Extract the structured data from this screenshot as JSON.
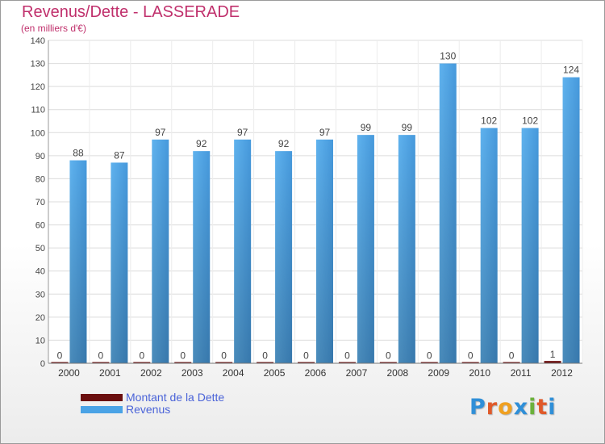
{
  "chart_data": {
    "type": "bar",
    "title": "Revenus/Dette - LASSERADE",
    "subtitle": "(en milliers d'€)",
    "categories": [
      "2000",
      "2001",
      "2002",
      "2003",
      "2004",
      "2005",
      "2006",
      "2007",
      "2008",
      "2009",
      "2010",
      "2011",
      "2012"
    ],
    "series": [
      {
        "name": "Montant de la Dette",
        "color": "#6b0f0f",
        "values": [
          0,
          0,
          0,
          0,
          0,
          0,
          0,
          0,
          0,
          0,
          0,
          0,
          1
        ]
      },
      {
        "name": "Revenus",
        "color": "#4aa3e6",
        "values": [
          88,
          87,
          97,
          92,
          97,
          92,
          97,
          99,
          99,
          130,
          102,
          102,
          124
        ]
      }
    ],
    "ylim": [
      0,
      140
    ],
    "yticks": [
      0,
      10,
      20,
      30,
      40,
      50,
      60,
      70,
      80,
      90,
      100,
      110,
      120,
      130,
      140
    ],
    "grid": true,
    "legend_position": "bottom-left"
  },
  "brand": {
    "logo_letters": [
      "P",
      "r",
      "o",
      "x",
      "i",
      "t",
      "i"
    ]
  }
}
